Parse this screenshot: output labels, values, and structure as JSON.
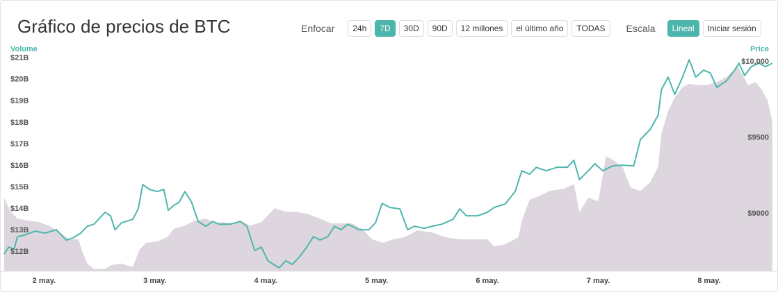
{
  "header": {
    "title": "Gráfico de precios de BTC",
    "zoom_label": "Enfocar",
    "zoom_options": [
      "24h",
      "7D",
      "30D",
      "90D",
      "12 millones",
      "el último año",
      "TODAS"
    ],
    "zoom_active": 1,
    "scale_label": "Escala",
    "scale_options": [
      "Lineal",
      "Iniciar sesión"
    ],
    "scale_active": 0
  },
  "chart_data": {
    "type": "line",
    "y_label": "Volume",
    "y2_label": "Price",
    "xlim": [
      1.64,
      8.59
    ],
    "xticks": [
      {
        "value": 2,
        "label": "2 may."
      },
      {
        "value": 3,
        "label": "3 may."
      },
      {
        "value": 4,
        "label": "4 may."
      },
      {
        "value": 5,
        "label": "5 may."
      },
      {
        "value": 6,
        "label": "6 may."
      },
      {
        "value": 7,
        "label": "7 may."
      },
      {
        "value": 8,
        "label": "8 may."
      }
    ],
    "ylim": [
      11.1,
      21.25
    ],
    "yticks": [
      {
        "value": 12,
        "label": "$12B"
      },
      {
        "value": 13,
        "label": "$13B"
      },
      {
        "value": 14,
        "label": "$14B"
      },
      {
        "value": 15,
        "label": "$15B"
      },
      {
        "value": 16,
        "label": "$16B"
      },
      {
        "value": 17,
        "label": "$17B"
      },
      {
        "value": 18,
        "label": "$18B"
      },
      {
        "value": 19,
        "label": "$19B"
      },
      {
        "value": 20,
        "label": "$20B"
      },
      {
        "value": 21,
        "label": "$21B"
      }
    ],
    "y2lim": [
      8620,
      10060
    ],
    "y2ticks": [
      {
        "value": 9000,
        "label": "$9000"
      },
      {
        "value": 9500,
        "label": "$9500"
      },
      {
        "value": 10000,
        "label": "$10,000"
      }
    ],
    "series": [
      {
        "type": "area",
        "axis": "y",
        "color": "#ddd6de",
        "x": [
          1.64,
          1.7,
          1.76,
          1.86,
          1.95,
          2.04,
          2.14,
          2.23,
          2.31,
          2.35,
          2.39,
          2.45,
          2.55,
          2.61,
          2.7,
          2.8,
          2.86,
          2.92,
          3.02,
          3.11,
          3.17,
          3.27,
          3.36,
          3.46,
          3.55,
          3.61,
          3.71,
          3.77,
          3.86,
          3.96,
          4.08,
          4.18,
          4.27,
          4.37,
          4.49,
          4.59,
          4.68,
          4.78,
          4.87,
          4.96,
          5.06,
          5.15,
          5.25,
          5.37,
          5.5,
          5.62,
          5.75,
          5.87,
          6.0,
          6.06,
          6.16,
          6.28,
          6.31,
          6.38,
          6.47,
          6.56,
          6.69,
          6.78,
          6.83,
          6.91,
          7.0,
          7.07,
          7.13,
          7.22,
          7.29,
          7.38,
          7.47,
          7.54,
          7.57,
          7.63,
          7.69,
          7.76,
          7.82,
          7.88,
          7.98,
          8.07,
          8.16,
          8.26,
          8.35,
          8.42,
          8.48,
          8.53,
          8.57
        ],
        "values": [
          14.51,
          13.86,
          13.54,
          13.45,
          13.38,
          13.22,
          12.9,
          12.58,
          12.58,
          11.94,
          11.45,
          11.2,
          11.2,
          11.39,
          11.45,
          11.29,
          12.1,
          12.42,
          12.48,
          12.68,
          13.06,
          13.22,
          13.45,
          13.54,
          13.32,
          13.38,
          13.32,
          13.45,
          13.22,
          13.38,
          14.03,
          13.86,
          13.86,
          13.77,
          13.54,
          13.32,
          13.32,
          13.32,
          13.06,
          12.58,
          12.42,
          12.58,
          12.68,
          13.0,
          12.9,
          12.68,
          12.58,
          12.58,
          12.58,
          12.26,
          12.35,
          12.68,
          13.45,
          14.41,
          14.6,
          14.83,
          14.93,
          15.15,
          13.86,
          14.51,
          14.35,
          16.44,
          16.28,
          15.95,
          14.99,
          14.83,
          15.25,
          15.95,
          17.5,
          18.53,
          19.17,
          19.65,
          19.81,
          19.75,
          19.75,
          19.88,
          20.14,
          20.62,
          19.75,
          19.88,
          19.49,
          19.01,
          18.05
        ]
      },
      {
        "type": "line",
        "axis": "y2",
        "color": "#4db6ac",
        "x": [
          1.64,
          1.68,
          1.73,
          1.76,
          1.82,
          1.92,
          2.01,
          2.11,
          2.2,
          2.26,
          2.33,
          2.39,
          2.45,
          2.55,
          2.6,
          2.64,
          2.7,
          2.8,
          2.85,
          2.89,
          2.95,
          3.02,
          3.08,
          3.12,
          3.17,
          3.22,
          3.27,
          3.33,
          3.39,
          3.46,
          3.52,
          3.58,
          3.68,
          3.77,
          3.83,
          3.9,
          3.96,
          4.02,
          4.12,
          4.18,
          4.24,
          4.3,
          4.37,
          4.43,
          4.49,
          4.56,
          4.62,
          4.68,
          4.74,
          4.84,
          4.93,
          4.99,
          5.05,
          5.12,
          5.21,
          5.28,
          5.34,
          5.43,
          5.5,
          5.59,
          5.69,
          5.75,
          5.81,
          5.91,
          6.0,
          6.06,
          6.16,
          6.25,
          6.31,
          6.38,
          6.44,
          6.53,
          6.63,
          6.72,
          6.78,
          6.83,
          6.91,
          6.97,
          7.04,
          7.13,
          7.22,
          7.32,
          7.38,
          7.47,
          7.54,
          7.57,
          7.63,
          7.69,
          7.76,
          7.82,
          7.88,
          7.95,
          8.01,
          8.07,
          8.16,
          8.23,
          8.27,
          8.32,
          8.38,
          8.45,
          8.51,
          8.57
        ],
        "values": [
          8733,
          8779,
          8765,
          8848,
          8857,
          8884,
          8871,
          8893,
          8825,
          8839,
          8871,
          8916,
          8930,
          9008,
          8985,
          8893,
          8939,
          8962,
          9031,
          9191,
          9159,
          9145,
          9159,
          9021,
          9053,
          9076,
          9145,
          9076,
          8948,
          8916,
          8948,
          8930,
          8930,
          8948,
          8916,
          8756,
          8779,
          8688,
          8642,
          8688,
          8665,
          8711,
          8779,
          8848,
          8825,
          8848,
          8916,
          8893,
          8930,
          8893,
          8893,
          8939,
          9067,
          9040,
          9031,
          8893,
          8916,
          8903,
          8916,
          8930,
          8962,
          9031,
          8985,
          8985,
          9008,
          9040,
          9063,
          9145,
          9282,
          9259,
          9305,
          9282,
          9305,
          9305,
          9351,
          9223,
          9282,
          9328,
          9282,
          9314,
          9319,
          9314,
          9488,
          9556,
          9648,
          9817,
          9899,
          9785,
          9899,
          10014,
          9899,
          9945,
          9927,
          9831,
          9877,
          9945,
          9991,
          9909,
          9968,
          9991,
          9968,
          9991
        ]
      }
    ]
  }
}
